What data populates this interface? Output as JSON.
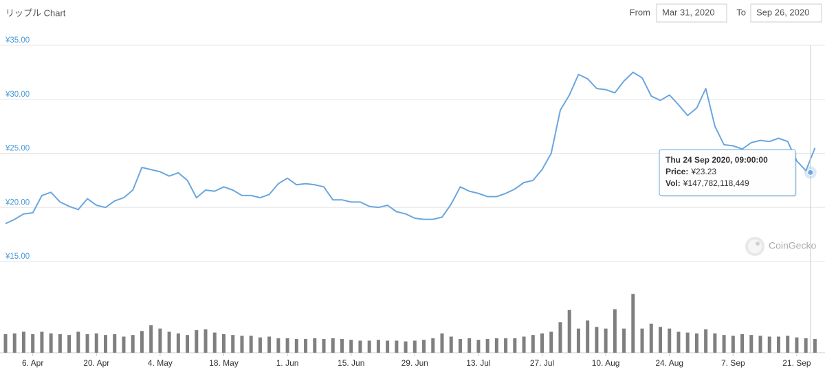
{
  "chart_data": {
    "type": "line",
    "title": "リップル Chart",
    "from_label": "From",
    "from_date": "Mar 31, 2020",
    "to_label": "To",
    "to_date": "Sep 26, 2020",
    "watermark": "CoinGecko",
    "color": "#6aa6de",
    "grid": true,
    "xlim": [
      "2020-03-31",
      "2020-09-26"
    ],
    "xticks": [
      {
        "value": "2020-04-06",
        "label": "6. Apr"
      },
      {
        "value": "2020-04-20",
        "label": "20. Apr"
      },
      {
        "value": "2020-05-04",
        "label": "4. May"
      },
      {
        "value": "2020-05-18",
        "label": "18. May"
      },
      {
        "value": "2020-06-01",
        "label": "1. Jun"
      },
      {
        "value": "2020-06-15",
        "label": "15. Jun"
      },
      {
        "value": "2020-06-29",
        "label": "29. Jun"
      },
      {
        "value": "2020-07-13",
        "label": "13. Jul"
      },
      {
        "value": "2020-07-27",
        "label": "27. Jul"
      },
      {
        "value": "2020-08-10",
        "label": "10. Aug"
      },
      {
        "value": "2020-08-24",
        "label": "24. Aug"
      },
      {
        "value": "2020-09-07",
        "label": "7. Sep"
      },
      {
        "value": "2020-09-21",
        "label": "21. Sep"
      }
    ],
    "ylim": [
      15,
      35
    ],
    "yticks": [
      {
        "value": 15,
        "label": "¥15.00"
      },
      {
        "value": 20,
        "label": "¥20.00"
      },
      {
        "value": 25,
        "label": "¥25.00"
      },
      {
        "value": 30,
        "label": "¥30.00"
      },
      {
        "value": 35,
        "label": "¥35.00"
      }
    ],
    "x": [
      "2020-03-31",
      "2020-04-02",
      "2020-04-04",
      "2020-04-06",
      "2020-04-08",
      "2020-04-10",
      "2020-04-12",
      "2020-04-14",
      "2020-04-16",
      "2020-04-18",
      "2020-04-20",
      "2020-04-22",
      "2020-04-24",
      "2020-04-26",
      "2020-04-28",
      "2020-04-30",
      "2020-05-02",
      "2020-05-04",
      "2020-05-06",
      "2020-05-08",
      "2020-05-10",
      "2020-05-12",
      "2020-05-14",
      "2020-05-16",
      "2020-05-18",
      "2020-05-20",
      "2020-05-22",
      "2020-05-24",
      "2020-05-26",
      "2020-05-28",
      "2020-05-30",
      "2020-06-01",
      "2020-06-03",
      "2020-06-05",
      "2020-06-07",
      "2020-06-09",
      "2020-06-11",
      "2020-06-13",
      "2020-06-15",
      "2020-06-17",
      "2020-06-19",
      "2020-06-21",
      "2020-06-23",
      "2020-06-25",
      "2020-06-27",
      "2020-06-29",
      "2020-07-01",
      "2020-07-03",
      "2020-07-05",
      "2020-07-07",
      "2020-07-09",
      "2020-07-11",
      "2020-07-13",
      "2020-07-15",
      "2020-07-17",
      "2020-07-19",
      "2020-07-21",
      "2020-07-23",
      "2020-07-25",
      "2020-07-27",
      "2020-07-29",
      "2020-07-31",
      "2020-08-02",
      "2020-08-04",
      "2020-08-06",
      "2020-08-08",
      "2020-08-10",
      "2020-08-12",
      "2020-08-14",
      "2020-08-16",
      "2020-08-18",
      "2020-08-20",
      "2020-08-22",
      "2020-08-24",
      "2020-08-26",
      "2020-08-28",
      "2020-08-30",
      "2020-09-01",
      "2020-09-03",
      "2020-09-05",
      "2020-09-07",
      "2020-09-09",
      "2020-09-11",
      "2020-09-13",
      "2020-09-15",
      "2020-09-17",
      "2020-09-19",
      "2020-09-21",
      "2020-09-23",
      "2020-09-25"
    ],
    "values": [
      18.5,
      18.9,
      19.4,
      19.5,
      21.1,
      21.4,
      20.5,
      20.1,
      19.8,
      20.8,
      20.2,
      20.0,
      20.6,
      20.9,
      21.6,
      23.7,
      23.5,
      23.3,
      22.9,
      23.2,
      22.5,
      20.9,
      21.6,
      21.5,
      21.9,
      21.6,
      21.1,
      21.1,
      20.9,
      21.2,
      22.2,
      22.7,
      22.1,
      22.2,
      22.1,
      21.9,
      20.7,
      20.7,
      20.5,
      20.5,
      20.1,
      20.0,
      20.2,
      19.6,
      19.4,
      19.0,
      18.9,
      18.9,
      19.1,
      20.3,
      21.9,
      21.5,
      21.3,
      21.0,
      21.0,
      21.3,
      21.7,
      22.3,
      22.5,
      23.5,
      25.0,
      29.0,
      30.4,
      32.3,
      31.9,
      31.0,
      30.9,
      30.6,
      31.7,
      32.5,
      32.0,
      30.3,
      29.9,
      30.4,
      29.5,
      28.5,
      29.2,
      31.0,
      27.5,
      25.8,
      25.7,
      25.4,
      26.0,
      26.2,
      26.1,
      26.4,
      26.1,
      24.3,
      23.4,
      25.5
    ],
    "volume": {
      "color": "#7f7f7f",
      "ylim": [
        0,
        800000000000.0
      ],
      "values": [
        230000000000.0,
        240000000000.0,
        260000000000.0,
        230000000000.0,
        260000000000.0,
        240000000000.0,
        230000000000.0,
        220000000000.0,
        260000000000.0,
        230000000000.0,
        240000000000.0,
        220000000000.0,
        230000000000.0,
        200000000000.0,
        220000000000.0,
        270000000000.0,
        340000000000.0,
        300000000000.0,
        260000000000.0,
        240000000000.0,
        220000000000.0,
        280000000000.0,
        290000000000.0,
        250000000000.0,
        230000000000.0,
        220000000000.0,
        210000000000.0,
        210000000000.0,
        190000000000.0,
        200000000000.0,
        180000000000.0,
        180000000000.0,
        170000000000.0,
        170000000000.0,
        180000000000.0,
        170000000000.0,
        180000000000.0,
        170000000000.0,
        160000000000.0,
        150000000000.0,
        150000000000.0,
        160000000000.0,
        150000000000.0,
        150000000000.0,
        140000000000.0,
        150000000000.0,
        160000000000.0,
        180000000000.0,
        240000000000.0,
        200000000000.0,
        170000000000.0,
        180000000000.0,
        160000000000.0,
        170000000000.0,
        180000000000.0,
        180000000000.0,
        180000000000.0,
        200000000000.0,
        220000000000.0,
        240000000000.0,
        260000000000.0,
        380000000000.0,
        530000000000.0,
        300000000000.0,
        400000000000.0,
        320000000000.0,
        300000000000.0,
        540000000000.0,
        300000000000.0,
        730000000000.0,
        300000000000.0,
        360000000000.0,
        320000000000.0,
        300000000000.0,
        260000000000.0,
        250000000000.0,
        240000000000.0,
        290000000000.0,
        240000000000.0,
        220000000000.0,
        210000000000.0,
        230000000000.0,
        220000000000.0,
        210000000000.0,
        200000000000.0,
        200000000000.0,
        210000000000.0,
        190000000000.0,
        180000000000.0,
        170000000000.0
      ]
    },
    "tooltip": {
      "x": "2020-09-24",
      "value": 23.23,
      "date_label": "Thu 24 Sep 2020, 09:00:00",
      "price_label": "Price:",
      "price_value": "¥23.23",
      "vol_label": "Vol:",
      "vol_value": "¥147,782,118,449"
    }
  }
}
